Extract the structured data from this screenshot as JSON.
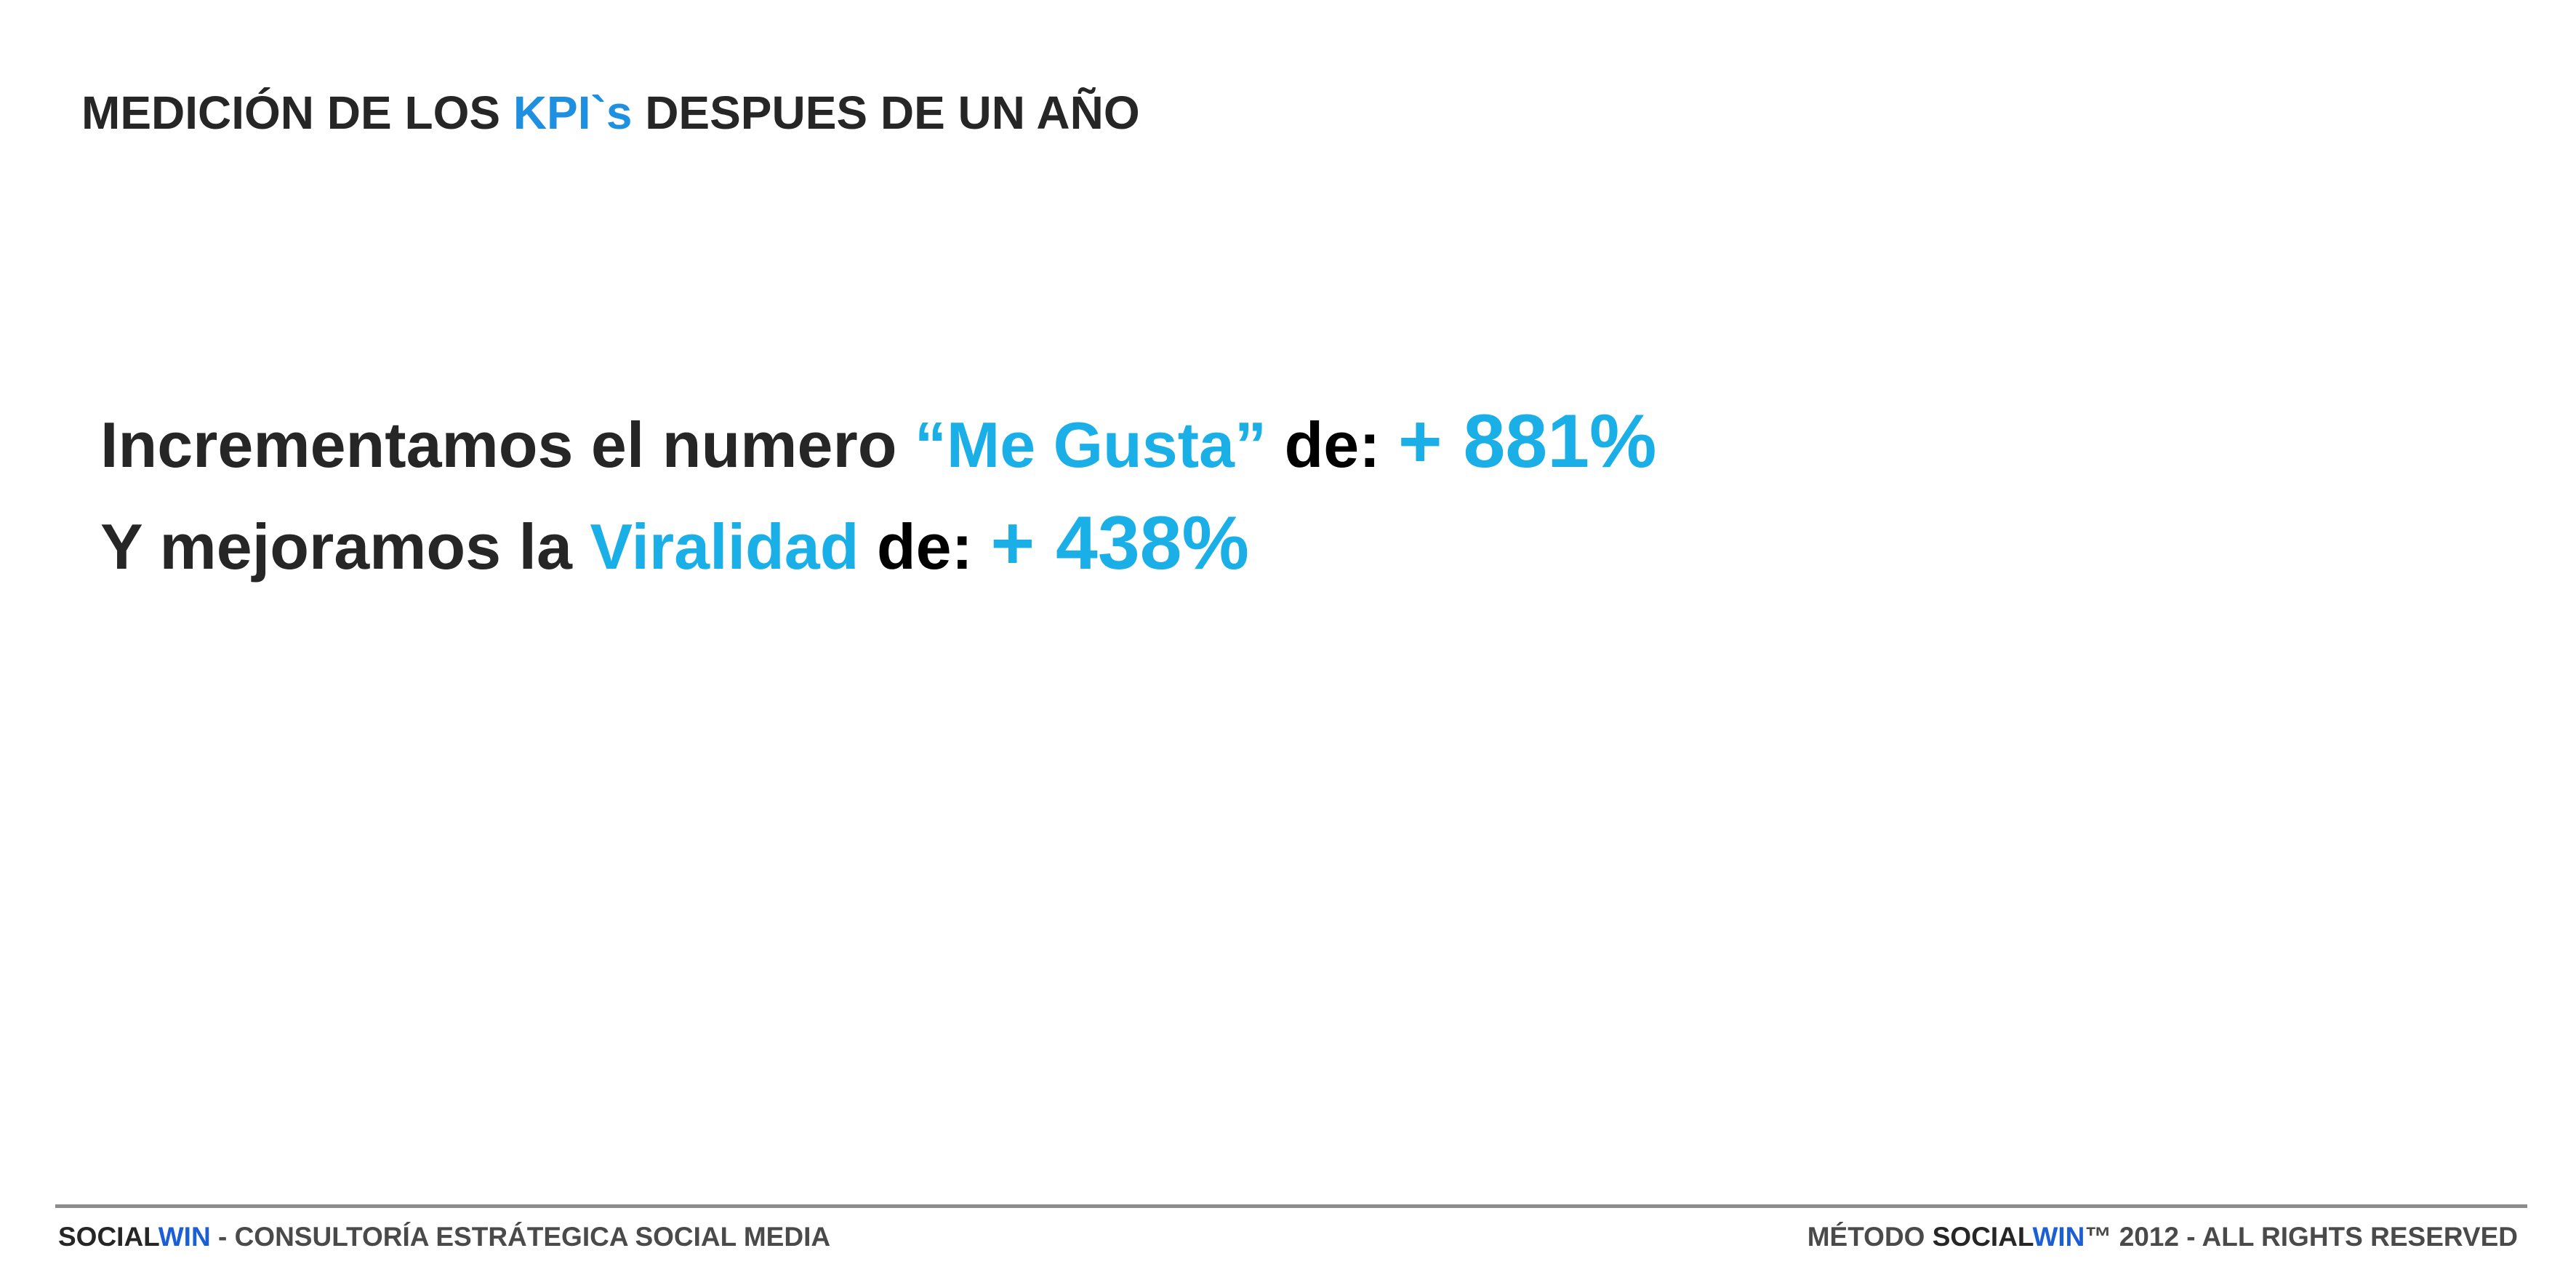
{
  "header": {
    "title_part1": "MEDICIÓN DE LOS ",
    "title_highlight": "KPI`s",
    "title_part2": " DESPUES DE UN AÑO"
  },
  "content": {
    "line1": {
      "text_a": "Incrementamos el numero ",
      "highlight": "“Me Gusta”",
      "text_b": " de: ",
      "value": "+ 881%"
    },
    "line2": {
      "text_a": "Y mejoramos la ",
      "highlight": "Viralidad",
      "text_b": " de: ",
      "value": "+ 438%"
    }
  },
  "footer": {
    "left_brand_a": "SOCIAL",
    "left_brand_b": "WIN",
    "left_text": " - CONSULTORÍA ESTRÁTEGICA SOCIAL MEDIA",
    "right_text_a": "MÉTODO ",
    "right_brand_a": "SOCIAL",
    "right_brand_b": "WIN",
    "right_text_b": "™ 2012 - ALL RIGHTS RESERVED"
  },
  "colors": {
    "title_accent": "#1f8fe0",
    "content_accent": "#1aafe6",
    "footer_accent": "#1a5fd6",
    "text_dark": "#262626",
    "rule": "#8c8c8c"
  }
}
